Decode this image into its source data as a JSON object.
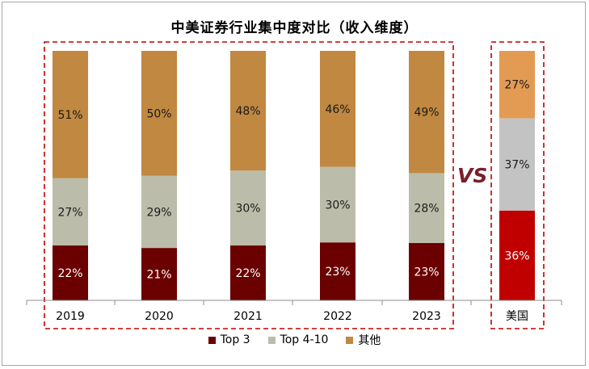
{
  "chart_data": {
    "type": "bar",
    "stacked": true,
    "percent": true,
    "title": "中美证券行业集中度对比（收入维度）",
    "categories": [
      "2019",
      "2020",
      "2021",
      "2022",
      "2023"
    ],
    "series": [
      {
        "name": "Top 3",
        "values": [
          22,
          21,
          22,
          23,
          23
        ],
        "color": "#6b0000"
      },
      {
        "name": "Top 4-10",
        "values": [
          27,
          29,
          30,
          30,
          28
        ],
        "color": "#bcbcaa"
      },
      {
        "name": "其他",
        "values": [
          51,
          50,
          48,
          46,
          49
        ],
        "color": "#c08840"
      }
    ],
    "compare_category": "美国",
    "compare_values": [
      {
        "name": "Top 3",
        "value": 36,
        "color": "#c00000"
      },
      {
        "name": "Top 4-10",
        "value": 37,
        "color": "#c3c3c3"
      },
      {
        "name": "其他",
        "value": 27,
        "color": "#e39a52"
      }
    ],
    "vs_label": "VS",
    "legend_position": "bottom",
    "grid": false
  }
}
